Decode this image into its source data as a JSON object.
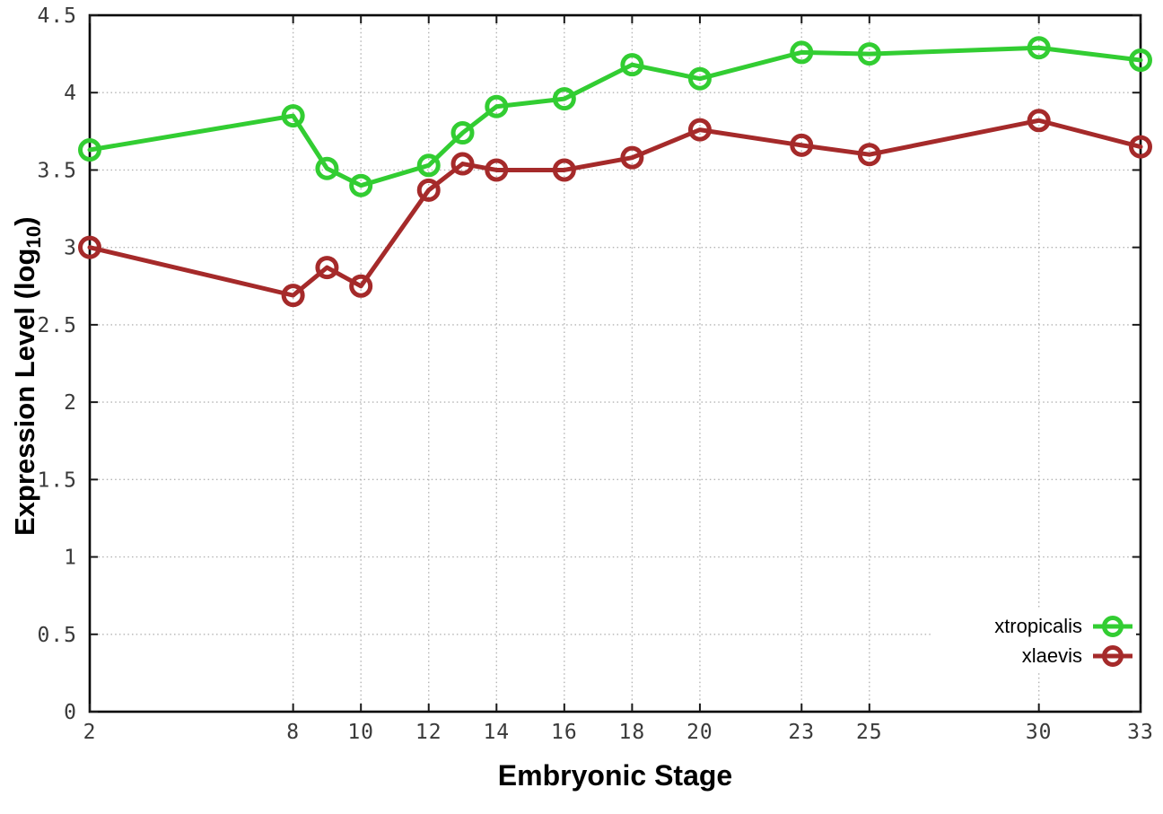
{
  "chart_data": {
    "type": "line",
    "title": "",
    "xlabel": "Embryonic Stage",
    "ylabel": "Expression Level (log10)",
    "ylabel_parts": {
      "pre": "Expression Level (log",
      "sub": "10",
      "post": ")"
    },
    "xlim": [
      2,
      33
    ],
    "ylim": [
      0,
      4.5
    ],
    "grid": true,
    "x": [
      2,
      8,
      9,
      10,
      12,
      13,
      14,
      16,
      18,
      20,
      23,
      25,
      30,
      33
    ],
    "xticks": [
      2,
      8,
      10,
      12,
      14,
      16,
      18,
      20,
      23,
      25,
      30,
      33
    ],
    "xtick_labels": [
      "2",
      "8",
      "10",
      "12",
      "14",
      "16",
      "18",
      "20",
      "23",
      "25",
      "30",
      "33"
    ],
    "yticks": [
      0,
      0.5,
      1,
      1.5,
      2,
      2.5,
      3,
      3.5,
      4,
      4.5
    ],
    "ytick_labels": [
      "0",
      "0.5",
      "1",
      "1.5",
      "2",
      "2.5",
      "3",
      "3.5",
      "4",
      "4.5"
    ],
    "series": [
      {
        "name": "xtropicalis",
        "color": "#32cd32",
        "values": [
          3.63,
          3.85,
          3.51,
          3.4,
          3.53,
          3.74,
          3.91,
          3.96,
          4.18,
          4.09,
          4.26,
          4.25,
          4.29,
          4.21
        ]
      },
      {
        "name": "xlaevis",
        "color": "#a52a2a",
        "values": [
          3.0,
          2.69,
          2.87,
          2.75,
          3.37,
          3.54,
          3.5,
          3.5,
          3.58,
          3.76,
          3.66,
          3.6,
          3.82,
          3.65
        ]
      }
    ],
    "legend_position": "bottom-right",
    "colors": {
      "background": "#ffffff",
      "axis": "#000000",
      "gridline": "#b4b4b4",
      "tick_text": "#3a3a3a"
    }
  }
}
